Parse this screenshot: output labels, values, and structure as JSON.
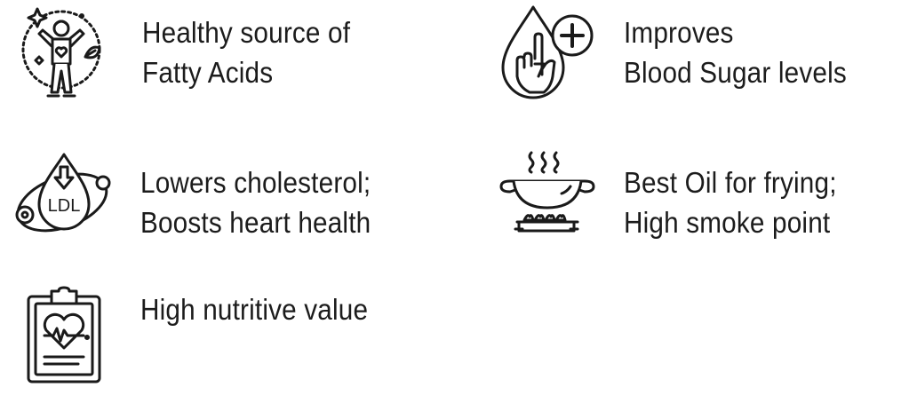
{
  "features": [
    {
      "icon": "healthy-person-icon",
      "line1": "Healthy source of",
      "line2": "Fatty Acids"
    },
    {
      "icon": "blood-drop-finger-plus-icon",
      "line1": "Improves",
      "line2": "Blood Sugar levels"
    },
    {
      "icon": "ldl-cholesterol-drop-icon",
      "line1": "Lowers cholesterol;",
      "line2": "Boosts heart health"
    },
    {
      "icon": "frying-pan-burner-icon",
      "line1": "Best Oil for frying;",
      "line2": "High smoke point"
    },
    {
      "icon": "clipboard-heart-icon",
      "line1": "High nutritive value"
    }
  ],
  "icon_text": {
    "ldl": "LDL"
  },
  "colors": {
    "stroke": "#1a1a1a",
    "text": "#1c1c1c",
    "background": "#ffffff"
  }
}
